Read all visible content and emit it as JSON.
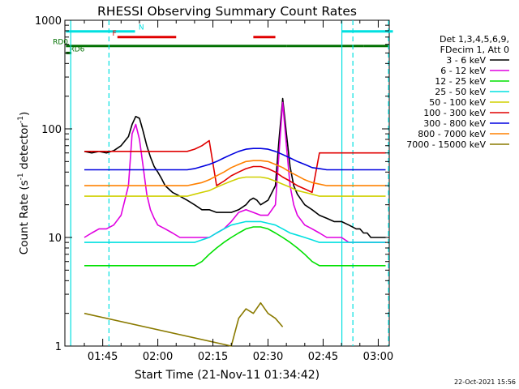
{
  "chart_data": {
    "type": "line",
    "title": "RHESSI Observing Summary Count Rates",
    "xlabel": "Start Time (21-Nov-11 01:34:42)",
    "ylabel_main": "Count Rate (s",
    "ylabel_sup1": "-1",
    "ylabel_mid": " detector",
    "ylabel_sup2": "-1",
    "ylabel_end": ")",
    "yscale": "log",
    "ylim": [
      1,
      1000
    ],
    "xlim_minutes": [
      94.7,
      183.0
    ],
    "x_ticks": [
      {
        "label": "01:45",
        "m": 105
      },
      {
        "label": "02:00",
        "m": 120
      },
      {
        "label": "02:15",
        "m": 135
      },
      {
        "label": "02:30",
        "m": 150
      },
      {
        "label": "02:45",
        "m": 165
      },
      {
        "label": "03:00",
        "m": 180
      }
    ],
    "y_ticks": [
      {
        "label": "1",
        "v": 1
      },
      {
        "label": "10",
        "v": 10
      },
      {
        "label": "100",
        "v": 100
      },
      {
        "label": "1000",
        "v": 1000
      }
    ],
    "legend_header": [
      "Det 1,3,4,5,6,9,",
      "FDecim 1, Att 0"
    ],
    "series": [
      {
        "name": "3 - 6 keV",
        "color": "#000000",
        "x": [
          96,
          97,
          98,
          99,
          100,
          102,
          104,
          106,
          108,
          110,
          112,
          113,
          114,
          115,
          116,
          117,
          118,
          119,
          120,
          121,
          122,
          124,
          126,
          128,
          130,
          132,
          134,
          136,
          138,
          140,
          142,
          144,
          145,
          146,
          147,
          148,
          150,
          152,
          153,
          154,
          155,
          156,
          157,
          158,
          160,
          162,
          164,
          166,
          168,
          170,
          172,
          174,
          175,
          176,
          177,
          178,
          179,
          180,
          181,
          182,
          183
        ],
        "y": [
          null,
          null,
          null,
          null,
          62,
          60,
          62,
          60,
          63,
          70,
          85,
          110,
          130,
          125,
          95,
          70,
          55,
          45,
          40,
          35,
          30,
          26,
          24,
          22,
          20,
          18,
          18,
          17,
          17,
          17,
          18,
          20,
          22,
          23,
          22,
          20,
          22,
          30,
          80,
          190,
          90,
          45,
          30,
          25,
          20,
          18,
          16,
          15,
          14,
          14,
          13,
          12,
          12,
          11,
          11,
          10,
          10,
          10,
          10,
          10,
          null
        ]
      },
      {
        "name": "6 - 12 keV",
        "color": "#e000e0",
        "x": [
          100,
          102,
          104,
          106,
          108,
          110,
          112,
          113,
          114,
          115,
          116,
          117,
          118,
          119,
          120,
          122,
          124,
          126,
          128,
          130,
          132,
          134,
          136,
          138,
          140,
          142,
          144,
          146,
          148,
          150,
          152,
          153,
          154,
          155,
          156,
          157,
          158,
          160,
          162,
          164,
          166,
          168,
          170,
          172,
          174,
          176,
          178,
          180,
          182
        ],
        "y": [
          10,
          11,
          12,
          12,
          13,
          16,
          30,
          90,
          110,
          80,
          45,
          25,
          18,
          15,
          13,
          12,
          11,
          10,
          10,
          10,
          10,
          10,
          11,
          12,
          14,
          17,
          18,
          17,
          16,
          16,
          20,
          60,
          175,
          70,
          30,
          20,
          16,
          13,
          12,
          11,
          10,
          10,
          10,
          9,
          9,
          9,
          9,
          9,
          9
        ]
      },
      {
        "name": "12 - 25 keV",
        "color": "#00e000",
        "x": [
          100,
          104,
          108,
          112,
          116,
          120,
          124,
          128,
          130,
          132,
          134,
          136,
          138,
          140,
          142,
          144,
          146,
          148,
          150,
          152,
          154,
          156,
          158,
          160,
          162,
          164,
          166,
          170,
          174,
          178,
          182
        ],
        "y": [
          5.5,
          5.5,
          5.5,
          5.5,
          5.5,
          5.5,
          5.5,
          5.5,
          5.5,
          6,
          7,
          8,
          9,
          10,
          11,
          12,
          12.5,
          12.5,
          12,
          11,
          10,
          9,
          8,
          7,
          6,
          5.5,
          5.5,
          5.5,
          5.5,
          5.5,
          5.5
        ]
      },
      {
        "name": "25 - 50 keV",
        "color": "#00e0e0",
        "x": [
          100,
          104,
          108,
          112,
          116,
          120,
          124,
          128,
          130,
          132,
          134,
          136,
          138,
          140,
          142,
          144,
          146,
          148,
          150,
          152,
          154,
          156,
          158,
          160,
          162,
          164,
          166,
          170,
          174,
          178,
          182
        ],
        "y": [
          9,
          9,
          9,
          9,
          9,
          9,
          9,
          9,
          9,
          9.5,
          10,
          11,
          12,
          13,
          13.5,
          14,
          14,
          14,
          13.5,
          13,
          12,
          11,
          10.5,
          10,
          9.5,
          9,
          9,
          9,
          9,
          9,
          9
        ]
      },
      {
        "name": "50 - 100 keV",
        "color": "#d0d000",
        "x": [
          100,
          104,
          108,
          112,
          116,
          120,
          124,
          128,
          130,
          132,
          134,
          136,
          138,
          140,
          142,
          144,
          146,
          148,
          150,
          152,
          154,
          156,
          158,
          160,
          162,
          164,
          166,
          170,
          174,
          178,
          182
        ],
        "y": [
          24,
          24,
          24,
          24,
          24,
          24,
          24,
          24,
          25,
          26,
          27,
          29,
          31,
          33,
          35,
          36,
          36,
          36,
          35,
          33,
          31,
          29,
          27,
          26,
          25,
          24,
          24,
          24,
          24,
          24,
          24
        ]
      },
      {
        "name": "100 - 300 keV",
        "color": "#e00000",
        "x": [
          100,
          104,
          108,
          112,
          116,
          120,
          124,
          128,
          130,
          132,
          134,
          136,
          138,
          140,
          142,
          144,
          146,
          148,
          150,
          152,
          154,
          156,
          158,
          160,
          162,
          164,
          166,
          170,
          174,
          178,
          182
        ],
        "y": [
          62,
          62,
          62,
          62,
          62,
          62,
          62,
          62,
          65,
          70,
          78,
          30,
          33,
          37,
          40,
          43,
          45,
          45,
          43,
          40,
          36,
          33,
          30,
          28,
          26,
          60,
          60,
          60,
          60,
          60,
          60
        ]
      },
      {
        "name": "300 - 800 keV",
        "color": "#0000e0",
        "x": [
          100,
          104,
          108,
          112,
          116,
          120,
          124,
          128,
          130,
          132,
          134,
          136,
          138,
          140,
          142,
          144,
          146,
          148,
          150,
          152,
          154,
          156,
          158,
          160,
          162,
          164,
          166,
          170,
          174,
          178,
          182
        ],
        "y": [
          42,
          42,
          42,
          42,
          42,
          42,
          42,
          42,
          43,
          45,
          47,
          50,
          54,
          58,
          62,
          65,
          66,
          66,
          65,
          62,
          58,
          54,
          50,
          47,
          44,
          43,
          42,
          42,
          42,
          42,
          42
        ]
      },
      {
        "name": "800 - 7000 keV",
        "color": "#ff8000",
        "x": [
          100,
          104,
          108,
          112,
          116,
          120,
          124,
          128,
          130,
          132,
          134,
          136,
          138,
          140,
          142,
          144,
          146,
          148,
          150,
          152,
          154,
          156,
          158,
          160,
          162,
          164,
          166,
          170,
          174,
          178,
          182
        ],
        "y": [
          30,
          30,
          30,
          30,
          30,
          30,
          30,
          30,
          31,
          32,
          34,
          37,
          40,
          44,
          47,
          50,
          51,
          51,
          50,
          47,
          44,
          40,
          37,
          34,
          32,
          31,
          30,
          30,
          30,
          30,
          30
        ]
      },
      {
        "name": "7000 - 15000 keV",
        "color": "#8a7a00",
        "x": [
          100,
          140,
          142,
          144,
          146,
          148,
          150,
          152,
          154
        ],
        "y": [
          2,
          1,
          1.8,
          2.2,
          2,
          2.5,
          2,
          1.8,
          1.5
        ]
      }
    ],
    "state_bars": [
      {
        "label": "N",
        "color": "#00e0e0",
        "label_m": 115.5,
        "level": 790,
        "segments": [
          [
            95,
            113.8
          ],
          [
            170,
            184
          ]
        ]
      },
      {
        "label": "F",
        "color": "#e00000",
        "label_m": 108.2,
        "level": 700,
        "segments": [
          [
            109,
            125
          ],
          [
            146,
            152
          ]
        ]
      },
      {
        "label": "RD0",
        "color": "#007000",
        "label_m": 93.5,
        "level": 580,
        "segments": [
          [
            95,
            133
          ],
          [
            133,
            155
          ],
          [
            155,
            176
          ],
          [
            176,
            183
          ]
        ]
      },
      {
        "label": "RD6",
        "color": "#007000",
        "label_m": 98,
        "level": 500,
        "segments": [
          [
            95,
            96.5
          ]
        ]
      }
    ],
    "cyan_markers_minutes": [
      106.7,
      173.1,
      182.8
    ],
    "cyan_solid_minutes": [
      96.3,
      170.1
    ],
    "grid": false,
    "legend_position": "right"
  },
  "footer": {
    "timestamp": "22-Oct-2021 15:56"
  }
}
